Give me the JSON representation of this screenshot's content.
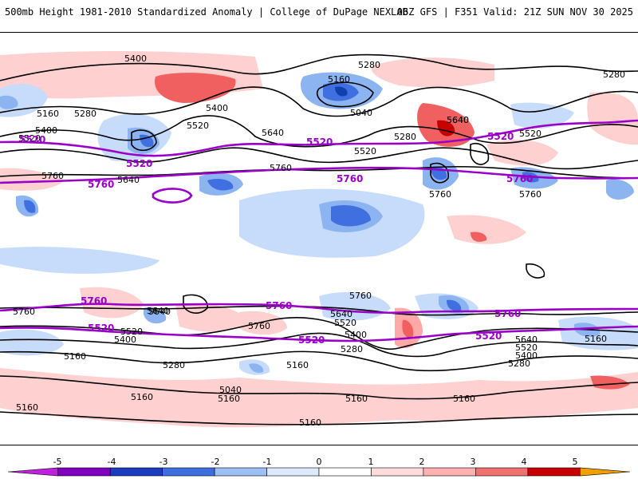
{
  "header": {
    "title_left": "500mb Height 1981-2010 Standardized Anomaly | College of DuPage NEXLAB",
    "title_right": "06Z GFS | F351 Valid: 21Z SUN NOV 30 2025"
  },
  "colors": {
    "pos_light": "#ffd0d0",
    "pos_mid": "#ffa8a8",
    "pos_strong": "#f06060",
    "pos_extreme": "#c80000",
    "neg_light": "#c6dcfa",
    "neg_mid": "#8cb4f0",
    "neg_strong": "#4070e0",
    "neg_extreme": "#1040b0",
    "contour": "#000000",
    "highlight": "#9a00c8"
  },
  "contour_labels": {
    "black": [
      "5400",
      "5280",
      "5160",
      "5280",
      "5400",
      "5520",
      "5640",
      "5040",
      "5160",
      "5280",
      "5520",
      "5400",
      "5640",
      "5520",
      "5280",
      "5640",
      "5760",
      "5760",
      "5760",
      "5640",
      "5760",
      "5640",
      "5520",
      "5400",
      "5280",
      "5160",
      "5760",
      "5760",
      "5640",
      "5520",
      "5400",
      "5160",
      "5280",
      "5160",
      "5040",
      "5160",
      "5160",
      "5160",
      "5160",
      "5160",
      "5280",
      "5160",
      "5640",
      "5520",
      "5400",
      "5520",
      "5640",
      "5760"
    ],
    "purple": [
      "5520",
      "5520",
      "5520",
      "5520",
      "5760",
      "5760",
      "5760",
      "5760",
      "5760",
      "5760",
      "5520",
      "5520",
      "5520"
    ]
  },
  "colorbar": {
    "ticks": [
      "-5",
      "-4",
      "-3",
      "-2",
      "-1",
      "0",
      "1",
      "2",
      "3",
      "4",
      "5"
    ],
    "colors": [
      "#c020e0",
      "#8000c0",
      "#1a3cc0",
      "#3c6ee0",
      "#9cc0f4",
      "#dceafc",
      "#ffffff",
      "#ffdcdc",
      "#ffb0b0",
      "#f07070",
      "#c80000",
      "#f0a000"
    ]
  }
}
